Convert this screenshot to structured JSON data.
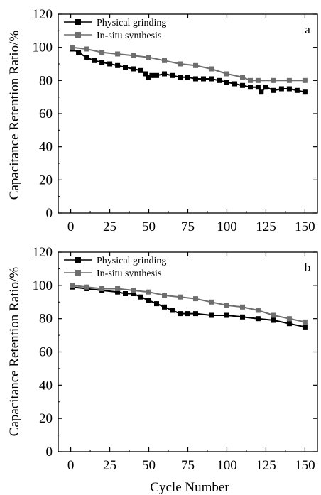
{
  "figure": {
    "ylabel": "Capacitance Retention Ratio/%",
    "xlabel": "Cycle Number"
  },
  "chart_data": [
    {
      "type": "line",
      "panel_label": "a",
      "ylabel": "Capacitance Retention Ratio/%",
      "xlabel": "",
      "xlim": [
        -8,
        158
      ],
      "ylim": [
        0,
        120
      ],
      "xticks": [
        "0",
        "25",
        "50",
        "75",
        "100",
        "125",
        "150"
      ],
      "yticks": [
        "0",
        "20",
        "40",
        "60",
        "80",
        "100",
        "120"
      ],
      "legend": "top-left",
      "series": [
        {
          "name": "Physical grinding",
          "color": "#000000",
          "x": [
            1,
            5,
            10,
            15,
            20,
            25,
            30,
            35,
            40,
            45,
            48,
            50,
            52,
            55,
            60,
            65,
            70,
            75,
            80,
            85,
            90,
            95,
            100,
            105,
            110,
            115,
            120,
            122,
            125,
            130,
            135,
            140,
            145,
            150
          ],
          "y": [
            99,
            97,
            94,
            92,
            91,
            90,
            89,
            88,
            87,
            86,
            84,
            82,
            83,
            83,
            84,
            83,
            82,
            82,
            81,
            81,
            81,
            80,
            79,
            78,
            77,
            76,
            76,
            73,
            76,
            74,
            75,
            75,
            74,
            73
          ]
        },
        {
          "name": "In-situ synthesis",
          "color": "#6e6e6e",
          "x": [
            1,
            10,
            20,
            30,
            40,
            50,
            60,
            70,
            80,
            90,
            100,
            110,
            115,
            120,
            130,
            140,
            150
          ],
          "y": [
            100,
            99,
            97,
            96,
            95,
            94,
            92,
            90,
            89,
            87,
            84,
            82,
            80,
            80,
            80,
            80,
            80
          ]
        }
      ]
    },
    {
      "type": "line",
      "panel_label": "b",
      "ylabel": "Capacitance Retention Ratio/%",
      "xlabel": "Cycle Number",
      "xlim": [
        -8,
        158
      ],
      "ylim": [
        0,
        120
      ],
      "xticks": [
        "0",
        "25",
        "50",
        "75",
        "100",
        "125",
        "150"
      ],
      "yticks": [
        "0",
        "20",
        "40",
        "60",
        "80",
        "100",
        "120"
      ],
      "legend": "top-left",
      "series": [
        {
          "name": "Physical grinding",
          "color": "#000000",
          "x": [
            1,
            10,
            20,
            30,
            35,
            40,
            45,
            50,
            55,
            60,
            65,
            70,
            75,
            80,
            90,
            100,
            110,
            120,
            130,
            140,
            150
          ],
          "y": [
            99,
            98,
            97,
            96,
            95,
            95,
            93,
            91,
            89,
            87,
            85,
            83,
            83,
            83,
            82,
            82,
            81,
            80,
            79,
            77,
            75
          ]
        },
        {
          "name": "In-situ synthesis",
          "color": "#6e6e6e",
          "x": [
            1,
            10,
            20,
            30,
            40,
            50,
            60,
            70,
            80,
            90,
            100,
            110,
            120,
            130,
            140,
            150
          ],
          "y": [
            100,
            99,
            98,
            98,
            97,
            96,
            94,
            93,
            92,
            90,
            88,
            87,
            85,
            82,
            80,
            78
          ]
        }
      ]
    }
  ]
}
